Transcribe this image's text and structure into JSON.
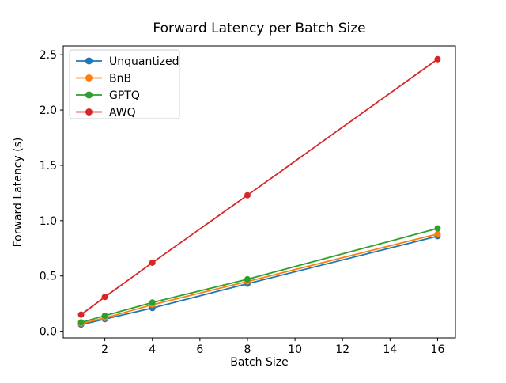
{
  "chart_data": {
    "type": "line",
    "title": "Forward Latency per Batch Size",
    "xlabel": "Batch Size",
    "ylabel": "Forward Latency (s)",
    "x": [
      1,
      2,
      4,
      8,
      16
    ],
    "series": [
      {
        "name": "Unquantized",
        "color": "#1f77b4",
        "values": [
          0.06,
          0.11,
          0.21,
          0.43,
          0.86
        ]
      },
      {
        "name": "BnB",
        "color": "#ff7f0e",
        "values": [
          0.07,
          0.12,
          0.24,
          0.45,
          0.88
        ]
      },
      {
        "name": "GPTQ",
        "color": "#2ca02c",
        "values": [
          0.08,
          0.14,
          0.26,
          0.47,
          0.93
        ]
      },
      {
        "name": "AWQ",
        "color": "#d62728",
        "values": [
          0.15,
          0.31,
          0.62,
          1.23,
          2.46
        ]
      }
    ],
    "xlim": [
      0.25,
      16.75
    ],
    "ylim": [
      -0.06,
      2.58
    ],
    "xticks": [
      2,
      4,
      6,
      8,
      10,
      12,
      14,
      16
    ],
    "yticks": [
      0.0,
      0.5,
      1.0,
      1.5,
      2.0,
      2.5
    ],
    "ytick_labels": [
      "0.0",
      "0.5",
      "1.0",
      "1.5",
      "2.0",
      "2.5"
    ],
    "grid": false,
    "legend_position": "upper left",
    "marker": "circle",
    "axis_color": "#000000",
    "legend_border_color": "#cccccc",
    "background_color": "#ffffff"
  }
}
